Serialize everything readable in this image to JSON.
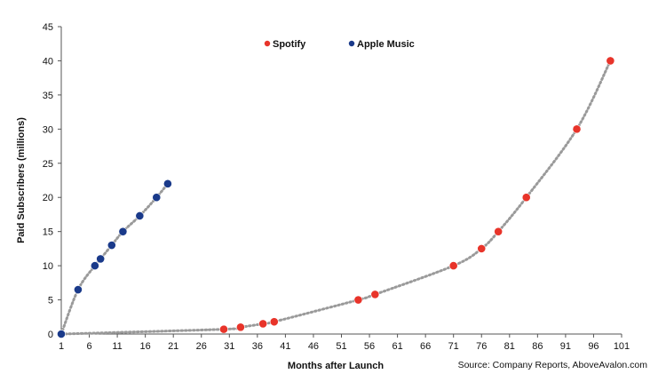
{
  "chart_data": {
    "type": "scatter",
    "title": "",
    "xlabel": "Months after Launch",
    "ylabel": "Paid Subscribers (millions)",
    "xlim": [
      1,
      101
    ],
    "ylim": [
      0,
      45
    ],
    "xticks": [
      "1",
      "6",
      "11",
      "16",
      "21",
      "26",
      "31",
      "36",
      "41",
      "46",
      "51",
      "56",
      "61",
      "66",
      "71",
      "76",
      "81",
      "86",
      "91",
      "96",
      "101"
    ],
    "yticks": [
      "0",
      "5",
      "10",
      "15",
      "20",
      "25",
      "30",
      "35",
      "40",
      "45"
    ],
    "grid": false,
    "legend_position": "top-center",
    "source": "Source: Company Reports, AboveAvalon.com",
    "series": [
      {
        "name": "Spotify",
        "color": "#e8342a",
        "points": [
          {
            "x": 1,
            "y": 0
          },
          {
            "x": 30,
            "y": 0.7
          },
          {
            "x": 33,
            "y": 1.0
          },
          {
            "x": 37,
            "y": 1.5
          },
          {
            "x": 39,
            "y": 1.8
          },
          {
            "x": 54,
            "y": 5.0
          },
          {
            "x": 57,
            "y": 5.8
          },
          {
            "x": 71,
            "y": 10.0
          },
          {
            "x": 76,
            "y": 12.5
          },
          {
            "x": 79,
            "y": 15.0
          },
          {
            "x": 84,
            "y": 20.0
          },
          {
            "x": 93,
            "y": 30.0
          },
          {
            "x": 99,
            "y": 40.0
          }
        ]
      },
      {
        "name": "Apple Music",
        "color": "#1a3a8a",
        "points": [
          {
            "x": 1,
            "y": 0
          },
          {
            "x": 4,
            "y": 6.5
          },
          {
            "x": 7,
            "y": 10.0
          },
          {
            "x": 8,
            "y": 11.0
          },
          {
            "x": 10,
            "y": 13.0
          },
          {
            "x": 12,
            "y": 15.0
          },
          {
            "x": 15,
            "y": 17.3
          },
          {
            "x": 18,
            "y": 20.0
          },
          {
            "x": 20,
            "y": 22.0
          }
        ]
      }
    ],
    "trendline_color": "#9a9a9a"
  }
}
